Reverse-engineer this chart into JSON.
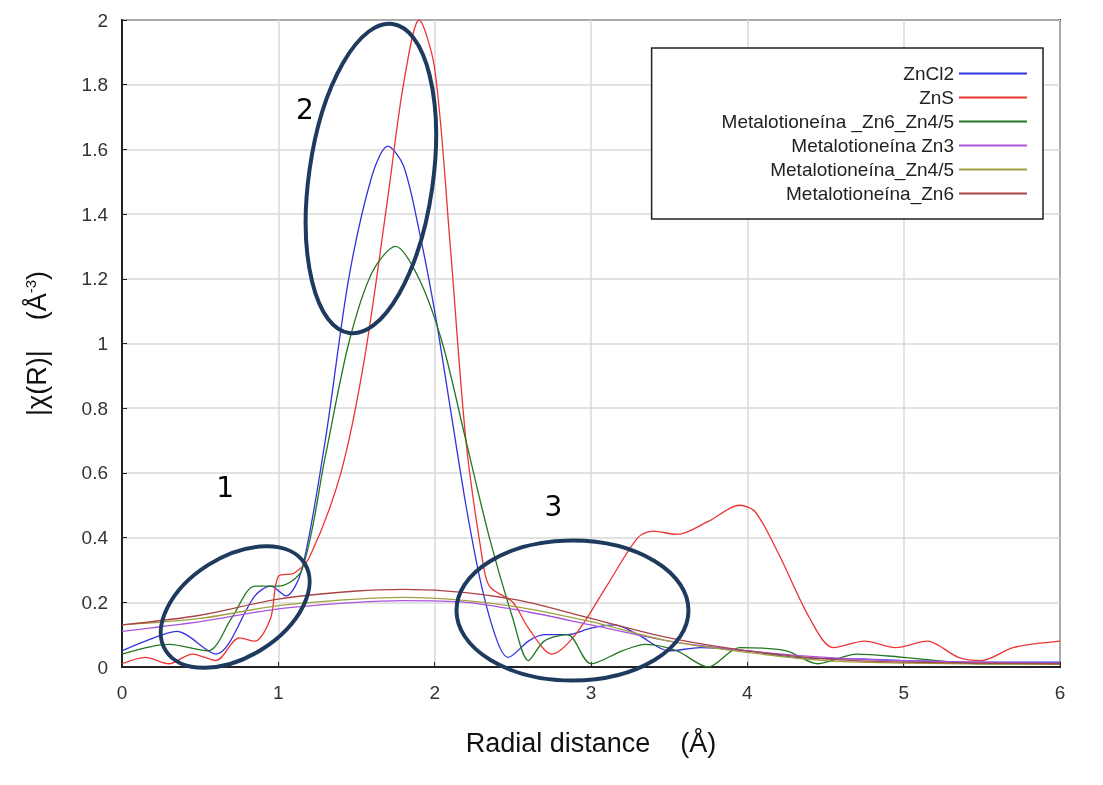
{
  "chart_data": {
    "type": "line",
    "xlabel": "Radial distance    (Å)",
    "ylabel": "|χ(R)|    (Å$^{-3}$)",
    "xlim": [
      0,
      6
    ],
    "xticks": [
      0,
      1,
      2,
      3,
      4,
      5,
      6
    ],
    "ylim": [
      0,
      2
    ],
    "yticks": [
      0,
      0.2,
      0.4,
      0.6,
      0.8,
      1,
      1.2,
      1.4,
      1.6,
      1.8,
      2
    ],
    "grid": true,
    "legend": "top right",
    "marker": "none",
    "line_style": "solid",
    "annotations": [
      "1",
      "2",
      "3"
    ],
    "series": [
      {
        "name": "ZnCl2",
        "color": "#3333dd",
        "x": [
          0,
          0.15,
          0.35,
          0.6,
          0.85,
          0.95,
          1.05,
          1.15,
          1.3,
          1.45,
          1.6,
          1.7,
          1.8,
          1.9,
          2.0,
          2.1,
          2.2,
          2.3,
          2.4,
          2.47,
          2.6,
          2.7,
          2.85,
          3.0,
          3.15,
          3.3,
          3.5,
          3.7,
          4.0,
          4.3,
          4.7,
          5.0,
          5.5,
          6
        ],
        "values": [
          0.05,
          0.08,
          0.11,
          0.04,
          0.22,
          0.25,
          0.22,
          0.3,
          0.7,
          1.2,
          1.52,
          1.61,
          1.55,
          1.35,
          1.1,
          0.8,
          0.5,
          0.25,
          0.08,
          0.03,
          0.08,
          0.1,
          0.1,
          0.12,
          0.13,
          0.1,
          0.05,
          0.06,
          0.05,
          0.03,
          0.025,
          0.02,
          0.015,
          0.015
        ]
      },
      {
        "name": "ZnS",
        "color": "#ee3333",
        "x": [
          0,
          0.15,
          0.3,
          0.45,
          0.6,
          0.75,
          0.85,
          0.95,
          1.0,
          1.1,
          1.2,
          1.4,
          1.55,
          1.7,
          1.8,
          1.9,
          2.0,
          2.1,
          2.2,
          2.3,
          2.35,
          2.5,
          2.6,
          2.75,
          2.9,
          3.1,
          3.3,
          3.4,
          3.55,
          3.75,
          3.95,
          4.05,
          4.2,
          4.4,
          4.55,
          4.75,
          4.95,
          5.15,
          5.35,
          5.5,
          5.7,
          6
        ],
        "values": [
          0.01,
          0.03,
          0.01,
          0.04,
          0.02,
          0.09,
          0.08,
          0.15,
          0.28,
          0.29,
          0.34,
          0.6,
          0.95,
          1.45,
          1.8,
          2.0,
          1.85,
          1.3,
          0.7,
          0.35,
          0.25,
          0.2,
          0.12,
          0.04,
          0.1,
          0.25,
          0.4,
          0.42,
          0.41,
          0.45,
          0.5,
          0.48,
          0.35,
          0.15,
          0.06,
          0.08,
          0.06,
          0.08,
          0.03,
          0.02,
          0.06,
          0.08
        ]
      },
      {
        "name": "Metalotioneína _Zn6_Zn4/5",
        "color": "#227722",
        "x": [
          0,
          0.3,
          0.55,
          0.7,
          0.85,
          1.0,
          1.15,
          1.3,
          1.45,
          1.6,
          1.75,
          1.9,
          2.05,
          2.2,
          2.35,
          2.5,
          2.6,
          2.7,
          2.85,
          3.0,
          3.2,
          3.35,
          3.55,
          3.75,
          3.95,
          4.25,
          4.45,
          4.7,
          5,
          5.5,
          6
        ],
        "values": [
          0.04,
          0.07,
          0.05,
          0.15,
          0.25,
          0.25,
          0.3,
          0.65,
          1.0,
          1.22,
          1.3,
          1.2,
          1.0,
          0.7,
          0.4,
          0.15,
          0.02,
          0.08,
          0.1,
          0.01,
          0.05,
          0.07,
          0.05,
          0.0,
          0.06,
          0.05,
          0.01,
          0.04,
          0.03,
          0.01,
          0.01
        ]
      },
      {
        "name": "Metalotioneína Zn3",
        "color": "#aa55dd",
        "x": [
          0,
          0.5,
          1,
          1.5,
          1.8,
          2.2,
          2.6,
          3,
          3.5,
          4,
          4.5,
          5,
          6
        ],
        "values": [
          0.11,
          0.14,
          0.18,
          0.2,
          0.205,
          0.2,
          0.17,
          0.13,
          0.08,
          0.05,
          0.03,
          0.02,
          0.01
        ]
      },
      {
        "name": "Metalotioneína_Zn4/5",
        "color": "#a0a040",
        "x": [
          0,
          0.5,
          1,
          1.5,
          1.8,
          2.2,
          2.6,
          3,
          3.5,
          4,
          4.5,
          5,
          6
        ],
        "values": [
          0.13,
          0.15,
          0.19,
          0.21,
          0.215,
          0.205,
          0.18,
          0.14,
          0.08,
          0.045,
          0.02,
          0.012,
          0.008
        ]
      },
      {
        "name": "Metalotioneína_Zn6",
        "color": "#aa4444",
        "x": [
          0,
          0.5,
          1,
          1.5,
          1.8,
          2.2,
          2.6,
          3,
          3.5,
          4,
          4.5,
          5,
          6
        ],
        "values": [
          0.13,
          0.16,
          0.21,
          0.235,
          0.24,
          0.23,
          0.2,
          0.15,
          0.09,
          0.05,
          0.025,
          0.015,
          0.01
        ]
      }
    ]
  }
}
